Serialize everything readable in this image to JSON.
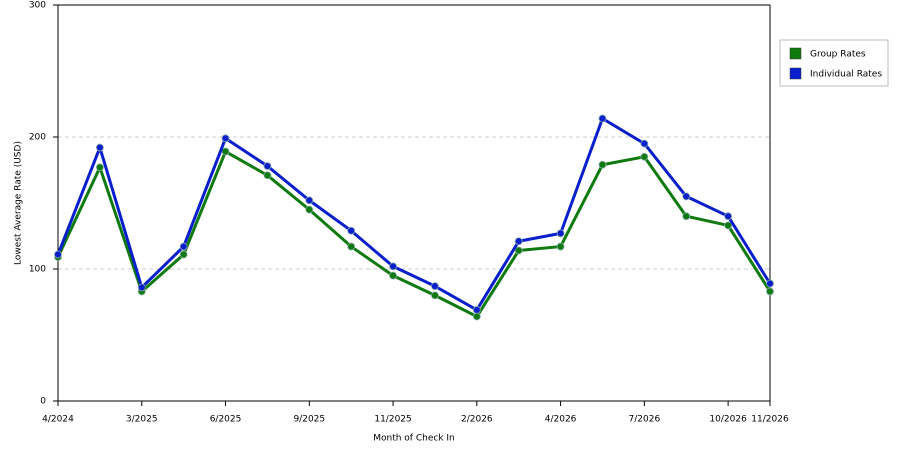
{
  "chart_data": {
    "type": "line",
    "x_label": "Month of Check In",
    "y_label": "Lowest Average Rate (USD)",
    "categories": [
      "4/2024",
      null,
      "3/2025",
      null,
      "6/2025",
      null,
      "9/2025",
      null,
      "11/2025",
      null,
      "2/2026",
      null,
      "4/2026",
      null,
      "7/2026",
      null,
      "10/2026",
      "11/2026"
    ],
    "series": [
      {
        "name": "Group Rates",
        "color": "#0f7a0f",
        "values": [
          109,
          177,
          83,
          111,
          189,
          171,
          145,
          117,
          95,
          80,
          64,
          114,
          117,
          179,
          185,
          140,
          133,
          83
        ]
      },
      {
        "name": "Individual Rates",
        "color": "#0a1fcc",
        "values": [
          111,
          192,
          86,
          117,
          199,
          178,
          152,
          129,
          102,
          87,
          69,
          121,
          127,
          214,
          195,
          155,
          140,
          89
        ]
      }
    ],
    "ylim": [
      0,
      300
    ],
    "yticks": [
      0,
      100,
      200,
      300
    ],
    "grid": true,
    "legend": "right"
  }
}
